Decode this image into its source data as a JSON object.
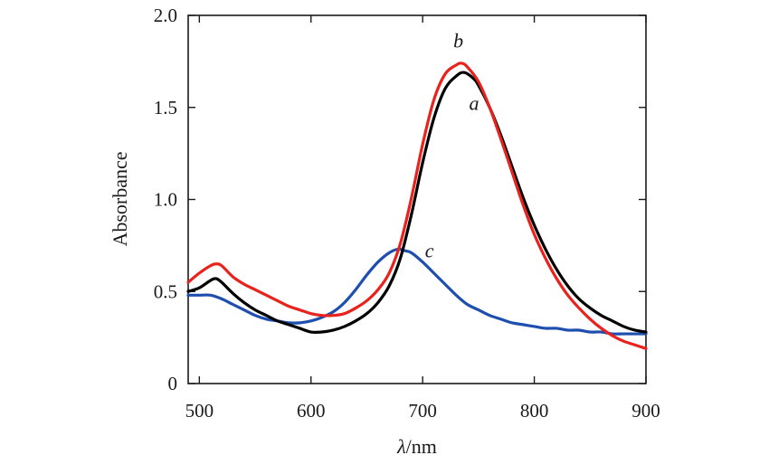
{
  "chart_data": {
    "type": "line",
    "title": "",
    "xlabel": "λ/nm",
    "xlabel_italic_part": "λ",
    "xlabel_rest": "/nm",
    "ylabel": "Absorbance",
    "xlim": [
      490,
      900
    ],
    "ylim": [
      0,
      2.0
    ],
    "xticks": [
      500,
      600,
      700,
      800,
      900
    ],
    "xtick_labels": [
      "500",
      "600",
      "700",
      "800",
      "900"
    ],
    "yticks": [
      0,
      0.5,
      1.0,
      1.5,
      2.0
    ],
    "ytick_labels": [
      "0",
      "0.5",
      "1.0",
      "1.5",
      "2.0"
    ],
    "series": [
      {
        "name": "a",
        "color": "#000000",
        "x": [
          490,
          500,
          510,
          515,
          520,
          530,
          540,
          550,
          560,
          570,
          580,
          590,
          600,
          610,
          620,
          630,
          640,
          650,
          660,
          670,
          680,
          690,
          700,
          710,
          720,
          730,
          737,
          745,
          750,
          760,
          770,
          780,
          790,
          800,
          810,
          820,
          830,
          840,
          850,
          860,
          870,
          880,
          890,
          900
        ],
        "y": [
          0.5,
          0.52,
          0.56,
          0.57,
          0.55,
          0.49,
          0.44,
          0.4,
          0.37,
          0.34,
          0.32,
          0.3,
          0.28,
          0.28,
          0.29,
          0.31,
          0.34,
          0.38,
          0.44,
          0.53,
          0.68,
          0.92,
          1.2,
          1.44,
          1.6,
          1.67,
          1.69,
          1.66,
          1.62,
          1.5,
          1.35,
          1.18,
          1.01,
          0.86,
          0.73,
          0.62,
          0.53,
          0.46,
          0.41,
          0.37,
          0.34,
          0.31,
          0.29,
          0.28
        ]
      },
      {
        "name": "b",
        "color": "#e8221c",
        "x": [
          490,
          500,
          510,
          515,
          520,
          530,
          540,
          550,
          560,
          570,
          580,
          590,
          600,
          610,
          620,
          630,
          640,
          650,
          660,
          670,
          680,
          690,
          700,
          710,
          720,
          730,
          735,
          740,
          750,
          760,
          770,
          780,
          790,
          800,
          810,
          820,
          830,
          840,
          850,
          860,
          870,
          880,
          890,
          900
        ],
        "y": [
          0.55,
          0.6,
          0.64,
          0.65,
          0.64,
          0.58,
          0.54,
          0.51,
          0.48,
          0.45,
          0.42,
          0.4,
          0.38,
          0.37,
          0.37,
          0.38,
          0.41,
          0.45,
          0.51,
          0.6,
          0.76,
          1.01,
          1.3,
          1.54,
          1.68,
          1.73,
          1.74,
          1.72,
          1.64,
          1.5,
          1.33,
          1.15,
          0.97,
          0.81,
          0.68,
          0.57,
          0.48,
          0.41,
          0.35,
          0.3,
          0.26,
          0.23,
          0.21,
          0.19
        ]
      },
      {
        "name": "c",
        "color": "#1f4fae",
        "x": [
          490,
          500,
          510,
          520,
          530,
          540,
          550,
          560,
          570,
          580,
          590,
          600,
          610,
          620,
          630,
          640,
          650,
          660,
          670,
          678,
          685,
          690,
          700,
          710,
          720,
          730,
          740,
          750,
          760,
          770,
          780,
          790,
          800,
          810,
          820,
          830,
          840,
          850,
          860,
          870,
          880,
          890,
          900
        ],
        "y": [
          0.48,
          0.48,
          0.48,
          0.46,
          0.43,
          0.4,
          0.37,
          0.35,
          0.34,
          0.33,
          0.33,
          0.34,
          0.36,
          0.39,
          0.44,
          0.51,
          0.59,
          0.66,
          0.71,
          0.73,
          0.72,
          0.71,
          0.66,
          0.6,
          0.54,
          0.48,
          0.43,
          0.4,
          0.37,
          0.35,
          0.33,
          0.32,
          0.31,
          0.3,
          0.3,
          0.29,
          0.29,
          0.28,
          0.28,
          0.27,
          0.27,
          0.27,
          0.27
        ]
      }
    ],
    "annotations": [
      {
        "text": "b",
        "series": "b",
        "x": 732,
        "y": 1.86
      },
      {
        "text": "a",
        "series": "a",
        "x": 746,
        "y": 1.52
      },
      {
        "text": "c",
        "series": "c",
        "x": 706,
        "y": 0.72
      }
    ]
  }
}
